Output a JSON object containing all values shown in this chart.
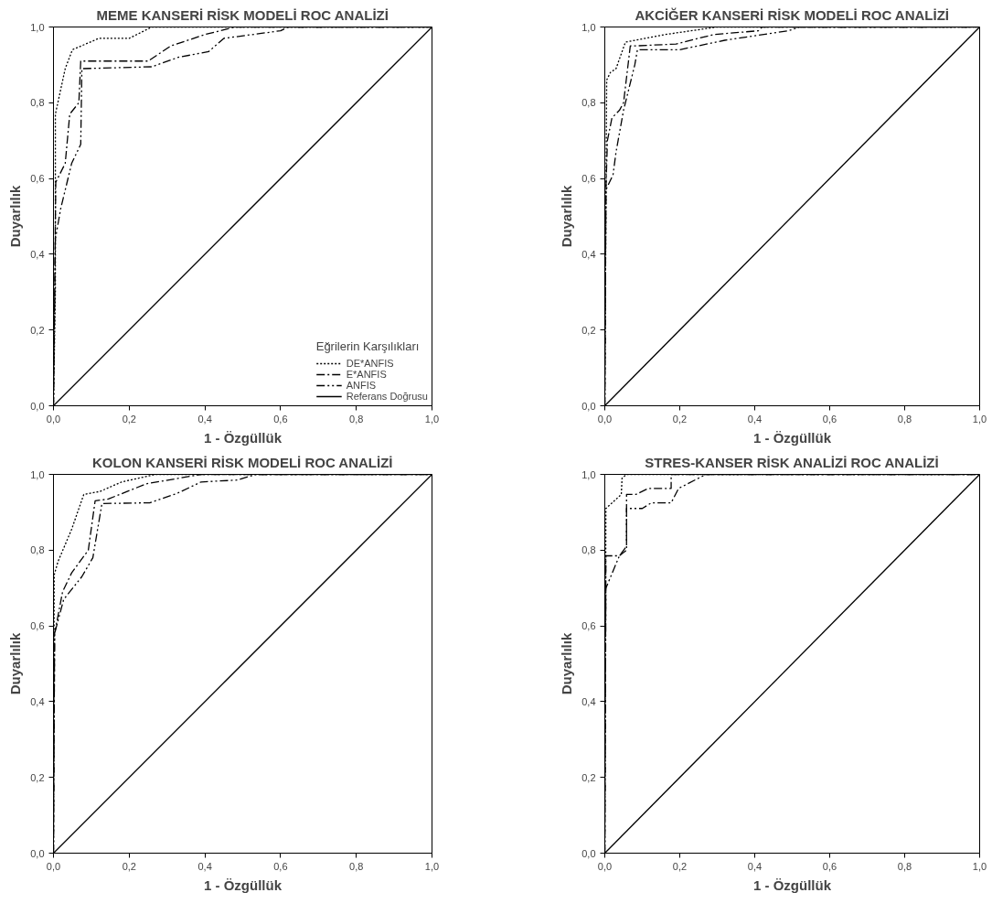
{
  "chart_data": [
    {
      "type": "line",
      "title": "MEME KANSERİ RİSK MODELİ ROC ANALİZİ",
      "xlabel": "1 - Özgüllük",
      "ylabel": "Duyarlılık",
      "legend_title": "Eğrilerin Karşılıkları",
      "legend": "bottom right",
      "grid": false,
      "xlim": [
        0,
        1
      ],
      "ylim": [
        0,
        1
      ],
      "xticks": [
        {
          "value": 0,
          "label": "0,0"
        },
        {
          "value": 0.2,
          "label": "0,2"
        },
        {
          "value": 0.4,
          "label": "0,4"
        },
        {
          "value": 0.6,
          "label": "0,6"
        },
        {
          "value": 0.8,
          "label": "0,8"
        },
        {
          "value": 1,
          "label": "1,0"
        }
      ],
      "yticks": [
        {
          "value": 0,
          "label": "0,0"
        },
        {
          "value": 0.2,
          "label": "0,2"
        },
        {
          "value": 0.4,
          "label": "0,4"
        },
        {
          "value": 0.6,
          "label": "0,6"
        },
        {
          "value": 0.8,
          "label": "0,8"
        },
        {
          "value": 1,
          "label": "1,0"
        }
      ],
      "series": [
        {
          "name": "DE*ANFIS",
          "color": "#000000",
          "line_style": "dotted",
          "x": [
            0,
            0.005,
            0.005,
            0.031,
            0.05,
            0.12,
            0.2,
            0.26,
            1
          ],
          "values": [
            0,
            0.3,
            0.77,
            0.89,
            0.94,
            0.97,
            0.97,
            1,
            1
          ]
        },
        {
          "name": "E*ANFIS",
          "color": "#000000",
          "line_style": "dashdot",
          "x": [
            0,
            0.006,
            0.031,
            0.043,
            0.067,
            0.072,
            0.25,
            0.31,
            0.4,
            0.48,
            1
          ],
          "values": [
            0,
            0.59,
            0.64,
            0.77,
            0.8,
            0.91,
            0.91,
            0.95,
            0.98,
            1,
            1
          ]
        },
        {
          "name": "ANFIS",
          "color": "#000000",
          "line_style": "dashdotdot",
          "x": [
            0,
            0.005,
            0.019,
            0.048,
            0.072,
            0.075,
            0.26,
            0.33,
            0.41,
            0.45,
            0.6,
            0.62,
            1
          ],
          "values": [
            0,
            0.44,
            0.52,
            0.64,
            0.69,
            0.89,
            0.895,
            0.92,
            0.935,
            0.97,
            0.99,
            1,
            1
          ]
        },
        {
          "name": "Referans Doğrusu",
          "color": "#000000",
          "line_style": "solid",
          "x": [
            0,
            1
          ],
          "values": [
            0,
            1
          ]
        }
      ]
    },
    {
      "type": "line",
      "title": "AKCİĞER KANSERİ RİSK MODELİ ROC ANALİZİ",
      "xlabel": "1 - Özgüllük",
      "ylabel": "Duyarlılık",
      "grid": false,
      "xlim": [
        0,
        1
      ],
      "ylim": [
        0,
        1
      ],
      "xticks": [
        {
          "value": 0,
          "label": "0,0"
        },
        {
          "value": 0.2,
          "label": "0,2"
        },
        {
          "value": 0.4,
          "label": "0,4"
        },
        {
          "value": 0.6,
          "label": "0,6"
        },
        {
          "value": 0.8,
          "label": "0,8"
        },
        {
          "value": 1,
          "label": "1,0"
        }
      ],
      "yticks": [
        {
          "value": 0,
          "label": "0,0"
        },
        {
          "value": 0.2,
          "label": "0,2"
        },
        {
          "value": 0.4,
          "label": "0,4"
        },
        {
          "value": 0.6,
          "label": "0,6"
        },
        {
          "value": 0.8,
          "label": "0,8"
        },
        {
          "value": 1,
          "label": "1,0"
        }
      ],
      "series": [
        {
          "color": "#000000",
          "line_style": "dotted",
          "x": [
            0,
            0.003,
            0.005,
            0.015,
            0.03,
            0.055,
            0.16,
            0.3,
            1
          ],
          "values": [
            0,
            0.5,
            0.86,
            0.88,
            0.89,
            0.96,
            0.98,
            1,
            1
          ]
        },
        {
          "color": "#000000",
          "line_style": "dashdot",
          "x": [
            0,
            0.003,
            0.007,
            0.019,
            0.039,
            0.05,
            0.068,
            0.08,
            0.19,
            0.29,
            0.41,
            0.42,
            1
          ],
          "values": [
            0,
            0.57,
            0.7,
            0.76,
            0.78,
            0.8,
            0.95,
            0.95,
            0.955,
            0.98,
            0.99,
            1,
            1
          ]
        },
        {
          "color": "#000000",
          "line_style": "dashdotdot",
          "x": [
            0,
            0.003,
            0.022,
            0.03,
            0.05,
            0.08,
            0.087,
            0.2,
            0.32,
            0.49,
            0.52,
            1
          ],
          "values": [
            0,
            0.57,
            0.61,
            0.67,
            0.78,
            0.9,
            0.94,
            0.94,
            0.965,
            0.99,
            1,
            1
          ]
        },
        {
          "color": "#000000",
          "line_style": "solid",
          "x": [
            0,
            1
          ],
          "values": [
            0,
            1
          ]
        }
      ]
    },
    {
      "type": "line",
      "title": "KOLON KANSERİ RİSK MODELİ ROC ANALİZİ",
      "xlabel": "1 - Özgüllük",
      "ylabel": "Duyarlılık",
      "grid": false,
      "xlim": [
        0,
        1
      ],
      "ylim": [
        0,
        1
      ],
      "xticks": [
        {
          "value": 0,
          "label": "0,0"
        },
        {
          "value": 0.2,
          "label": "0,2"
        },
        {
          "value": 0.4,
          "label": "0,4"
        },
        {
          "value": 0.6,
          "label": "0,6"
        },
        {
          "value": 0.8,
          "label": "0,8"
        },
        {
          "value": 1,
          "label": "1,0"
        }
      ],
      "yticks": [
        {
          "value": 0,
          "label": "0,0"
        },
        {
          "value": 0.2,
          "label": "0,2"
        },
        {
          "value": 0.4,
          "label": "0,4"
        },
        {
          "value": 0.6,
          "label": "0,6"
        },
        {
          "value": 0.8,
          "label": "0,8"
        },
        {
          "value": 1,
          "label": "1,0"
        }
      ],
      "series": [
        {
          "color": "#000000",
          "line_style": "dotted",
          "x": [
            0,
            0.002,
            0.012,
            0.048,
            0.08,
            0.123,
            0.18,
            0.27,
            1
          ],
          "values": [
            0,
            0.735,
            0.77,
            0.855,
            0.947,
            0.955,
            0.98,
            1,
            1
          ]
        },
        {
          "color": "#000000",
          "line_style": "dashdot",
          "x": [
            0,
            0.003,
            0.024,
            0.048,
            0.092,
            0.11,
            0.145,
            0.245,
            0.39,
            1
          ],
          "values": [
            0,
            0.58,
            0.69,
            0.74,
            0.8,
            0.93,
            0.935,
            0.975,
            1,
            1
          ]
        },
        {
          "color": "#000000",
          "line_style": "dashdotdot",
          "x": [
            0,
            0.003,
            0.027,
            0.075,
            0.104,
            0.128,
            0.254,
            0.327,
            0.39,
            0.485,
            0.535,
            1
          ],
          "values": [
            0,
            0.58,
            0.67,
            0.73,
            0.78,
            0.923,
            0.925,
            0.95,
            0.98,
            0.985,
            1,
            1
          ]
        },
        {
          "color": "#000000",
          "line_style": "solid",
          "x": [
            0,
            1
          ],
          "values": [
            0,
            1
          ]
        }
      ]
    },
    {
      "type": "line",
      "title": "STRES-KANSER RİSK ANALİZİ ROC ANALİZİ",
      "xlabel": "1 - Özgüllük",
      "ylabel": "Duyarlılık",
      "grid": false,
      "xlim": [
        0,
        1
      ],
      "ylim": [
        0,
        1
      ],
      "xticks": [
        {
          "value": 0,
          "label": "0,0"
        },
        {
          "value": 0.2,
          "label": "0,2"
        },
        {
          "value": 0.4,
          "label": "0,4"
        },
        {
          "value": 0.6,
          "label": "0,6"
        },
        {
          "value": 0.8,
          "label": "0,8"
        },
        {
          "value": 1,
          "label": "1,0"
        }
      ],
      "yticks": [
        {
          "value": 0,
          "label": "0,0"
        },
        {
          "value": 0.2,
          "label": "0,2"
        },
        {
          "value": 0.4,
          "label": "0,4"
        },
        {
          "value": 0.6,
          "label": "0,6"
        },
        {
          "value": 0.8,
          "label": "0,8"
        },
        {
          "value": 1,
          "label": "1,0"
        }
      ],
      "series": [
        {
          "color": "#000000",
          "line_style": "dotted",
          "x": [
            0,
            0.003,
            0.044,
            0.046,
            0.058,
            1
          ],
          "values": [
            0,
            0.91,
            0.947,
            0.99,
            1,
            1
          ]
        },
        {
          "color": "#000000",
          "line_style": "dashdot",
          "x": [
            0,
            0.003,
            0.039,
            0.058,
            0.058,
            0.083,
            0.116,
            0.177,
            0.177,
            1
          ],
          "values": [
            0,
            0.785,
            0.785,
            0.8,
            0.947,
            0.947,
            0.963,
            0.963,
            1,
            1
          ]
        },
        {
          "color": "#000000",
          "line_style": "dashdotdot",
          "x": [
            0,
            0.003,
            0.039,
            0.058,
            0.058,
            0.1,
            0.124,
            0.177,
            0.197,
            0.27,
            1
          ],
          "values": [
            0,
            0.7,
            0.785,
            0.81,
            0.91,
            0.91,
            0.925,
            0.925,
            0.963,
            1,
            1
          ]
        },
        {
          "color": "#000000",
          "line_style": "solid",
          "x": [
            0,
            1
          ],
          "values": [
            0,
            1
          ]
        }
      ]
    }
  ]
}
